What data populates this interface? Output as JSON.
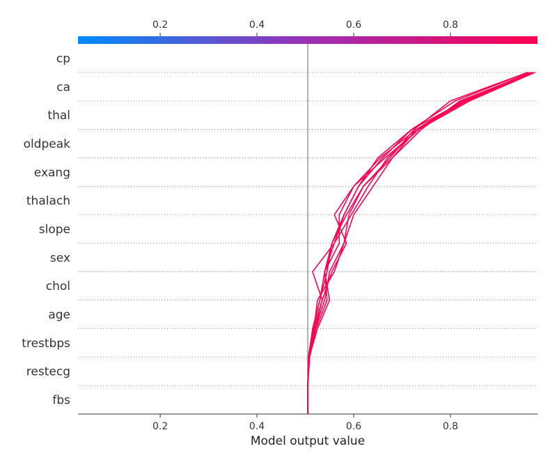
{
  "chart_data": {
    "type": "line",
    "subtype": "shap-decision-plot",
    "xlabel": "Model output value",
    "xlim": [
      0.03,
      0.98
    ],
    "x_ticks": [
      0.2,
      0.4,
      0.6,
      0.8
    ],
    "x_tick_labels": [
      "0.2",
      "0.4",
      "0.6",
      "0.8"
    ],
    "base_value": 0.505,
    "colormap": {
      "low": "#008bfb",
      "mid": "#9b2fb4",
      "high": "#ff0052"
    },
    "line_color": "#ff0052",
    "base_line_color": "#999999",
    "grid": "dotted-horizontal",
    "features": [
      "cp",
      "ca",
      "thal",
      "oldpeak",
      "exang",
      "thalach",
      "slope",
      "sex",
      "chol",
      "age",
      "trestbps",
      "restecg",
      "fbs"
    ],
    "series_order_note": "values listed from bottom (fbs) to top (cp)",
    "series": [
      {
        "values": [
          0.505,
          0.505,
          0.507,
          0.515,
          0.53,
          0.545,
          0.555,
          0.58,
          0.61,
          0.65,
          0.72,
          0.83,
          0.965
        ]
      },
      {
        "values": [
          0.505,
          0.505,
          0.508,
          0.52,
          0.535,
          0.515,
          0.56,
          0.595,
          0.63,
          0.67,
          0.735,
          0.84,
          0.975
        ]
      },
      {
        "values": [
          0.505,
          0.505,
          0.507,
          0.518,
          0.525,
          0.56,
          0.58,
          0.6,
          0.64,
          0.68,
          0.74,
          0.82,
          0.97
        ]
      },
      {
        "values": [
          0.505,
          0.505,
          0.509,
          0.522,
          0.545,
          0.54,
          0.56,
          0.58,
          0.61,
          0.66,
          0.72,
          0.81,
          0.96
        ]
      },
      {
        "values": [
          0.505,
          0.505,
          0.507,
          0.517,
          0.535,
          0.555,
          0.585,
          0.56,
          0.6,
          0.655,
          0.73,
          0.835,
          0.975
        ]
      },
      {
        "values": [
          0.505,
          0.505,
          0.506,
          0.516,
          0.53,
          0.54,
          0.555,
          0.585,
          0.62,
          0.675,
          0.725,
          0.8,
          0.96
        ]
      },
      {
        "values": [
          0.505,
          0.505,
          0.508,
          0.525,
          0.55,
          0.54,
          0.57,
          0.57,
          0.6,
          0.665,
          0.735,
          0.83,
          0.97
        ]
      },
      {
        "values": [
          0.505,
          0.505,
          0.507,
          0.52,
          0.54,
          0.55,
          0.58,
          0.59,
          0.62,
          0.68,
          0.73,
          0.825,
          0.965
        ]
      }
    ]
  }
}
